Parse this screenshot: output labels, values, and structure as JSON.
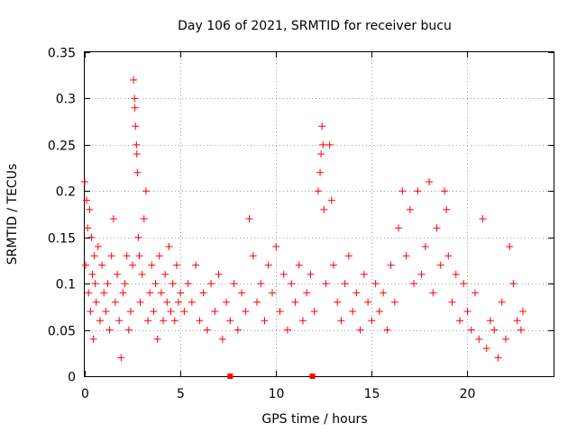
{
  "chart_data": {
    "type": "scatter",
    "title": "Day 106 of 2021, SRMTID for receiver bucu",
    "xlabel": "GPS time / hours",
    "ylabel": "SRMTID / TECUs",
    "xlim": [
      0,
      24.5
    ],
    "ylim": [
      0,
      0.35
    ],
    "x_ticks": [
      0,
      5,
      10,
      15,
      20
    ],
    "x_tick_labels": [
      "0",
      "5",
      "10",
      "15",
      "20"
    ],
    "y_ticks": [
      0,
      0.05,
      0.1,
      0.15,
      0.2,
      0.25,
      0.3,
      0.35
    ],
    "y_tick_labels": [
      "0",
      "0.05",
      "0.1",
      "0.15",
      "0.2",
      "0.25",
      "0.3",
      "0.35"
    ],
    "grid": true,
    "marker": "+",
    "color": "#ff0000",
    "series": [
      {
        "name": "SRMTID",
        "points": [
          [
            0.0,
            0.21
          ],
          [
            0.05,
            0.12
          ],
          [
            0.1,
            0.19
          ],
          [
            0.15,
            0.16
          ],
          [
            0.2,
            0.09
          ],
          [
            0.25,
            0.18
          ],
          [
            0.3,
            0.07
          ],
          [
            0.35,
            0.15
          ],
          [
            0.4,
            0.11
          ],
          [
            0.45,
            0.04
          ],
          [
            0.5,
            0.13
          ],
          [
            0.55,
            0.1
          ],
          [
            0.6,
            0.08
          ],
          [
            0.7,
            0.14
          ],
          [
            0.8,
            0.06
          ],
          [
            0.9,
            0.12
          ],
          [
            1.0,
            0.09
          ],
          [
            1.1,
            0.07
          ],
          [
            1.2,
            0.1
          ],
          [
            1.3,
            0.05
          ],
          [
            1.4,
            0.13
          ],
          [
            1.5,
            0.17
          ],
          [
            1.6,
            0.08
          ],
          [
            1.7,
            0.11
          ],
          [
            1.8,
            0.06
          ],
          [
            1.9,
            0.02
          ],
          [
            2.0,
            0.09
          ],
          [
            2.1,
            0.1
          ],
          [
            2.2,
            0.13
          ],
          [
            2.3,
            0.05
          ],
          [
            2.4,
            0.07
          ],
          [
            2.5,
            0.12
          ],
          [
            2.55,
            0.32
          ],
          [
            2.6,
            0.3
          ],
          [
            2.62,
            0.29
          ],
          [
            2.65,
            0.27
          ],
          [
            2.7,
            0.25
          ],
          [
            2.72,
            0.24
          ],
          [
            2.75,
            0.22
          ],
          [
            2.8,
            0.15
          ],
          [
            2.85,
            0.13
          ],
          [
            2.9,
            0.08
          ],
          [
            3.0,
            0.11
          ],
          [
            3.1,
            0.17
          ],
          [
            3.2,
            0.2
          ],
          [
            3.3,
            0.06
          ],
          [
            3.4,
            0.09
          ],
          [
            3.5,
            0.12
          ],
          [
            3.6,
            0.07
          ],
          [
            3.7,
            0.1
          ],
          [
            3.8,
            0.04
          ],
          [
            3.9,
            0.13
          ],
          [
            4.0,
            0.09
          ],
          [
            4.1,
            0.06
          ],
          [
            4.2,
            0.11
          ],
          [
            4.3,
            0.08
          ],
          [
            4.4,
            0.14
          ],
          [
            4.5,
            0.07
          ],
          [
            4.6,
            0.1
          ],
          [
            4.7,
            0.06
          ],
          [
            4.8,
            0.12
          ],
          [
            4.9,
            0.08
          ],
          [
            5.0,
            0.09
          ],
          [
            5.2,
            0.07
          ],
          [
            5.4,
            0.1
          ],
          [
            5.6,
            0.08
          ],
          [
            5.8,
            0.12
          ],
          [
            6.0,
            0.06
          ],
          [
            6.2,
            0.09
          ],
          [
            6.4,
            0.05
          ],
          [
            6.6,
            0.1
          ],
          [
            6.8,
            0.07
          ],
          [
            7.0,
            0.11
          ],
          [
            7.2,
            0.04
          ],
          [
            7.4,
            0.08
          ],
          [
            7.6,
            0.06
          ],
          [
            7.8,
            0.1
          ],
          [
            8.0,
            0.05
          ],
          [
            8.2,
            0.09
          ],
          [
            8.4,
            0.07
          ],
          [
            8.6,
            0.17
          ],
          [
            8.8,
            0.13
          ],
          [
            9.0,
            0.08
          ],
          [
            9.2,
            0.1
          ],
          [
            9.4,
            0.06
          ],
          [
            9.6,
            0.12
          ],
          [
            9.8,
            0.09
          ],
          [
            10.0,
            0.14
          ],
          [
            10.2,
            0.07
          ],
          [
            10.4,
            0.11
          ],
          [
            10.6,
            0.05
          ],
          [
            10.8,
            0.1
          ],
          [
            11.0,
            0.08
          ],
          [
            11.2,
            0.12
          ],
          [
            11.4,
            0.06
          ],
          [
            11.6,
            0.09
          ],
          [
            11.8,
            0.11
          ],
          [
            12.0,
            0.07
          ],
          [
            12.2,
            0.2
          ],
          [
            12.3,
            0.22
          ],
          [
            12.35,
            0.24
          ],
          [
            12.4,
            0.27
          ],
          [
            12.45,
            0.25
          ],
          [
            12.5,
            0.18
          ],
          [
            12.6,
            0.1
          ],
          [
            12.8,
            0.25
          ],
          [
            12.9,
            0.19
          ],
          [
            13.0,
            0.12
          ],
          [
            13.2,
            0.08
          ],
          [
            13.4,
            0.06
          ],
          [
            13.6,
            0.1
          ],
          [
            13.8,
            0.13
          ],
          [
            14.0,
            0.07
          ],
          [
            14.2,
            0.09
          ],
          [
            14.4,
            0.05
          ],
          [
            14.6,
            0.11
          ],
          [
            14.8,
            0.08
          ],
          [
            15.0,
            0.06
          ],
          [
            15.2,
            0.1
          ],
          [
            15.4,
            0.07
          ],
          [
            15.6,
            0.09
          ],
          [
            15.8,
            0.05
          ],
          [
            16.0,
            0.12
          ],
          [
            16.2,
            0.08
          ],
          [
            16.4,
            0.16
          ],
          [
            16.6,
            0.2
          ],
          [
            16.8,
            0.13
          ],
          [
            17.0,
            0.18
          ],
          [
            17.2,
            0.1
          ],
          [
            17.4,
            0.2
          ],
          [
            17.6,
            0.11
          ],
          [
            17.8,
            0.14
          ],
          [
            18.0,
            0.21
          ],
          [
            18.2,
            0.09
          ],
          [
            18.4,
            0.16
          ],
          [
            18.6,
            0.12
          ],
          [
            18.8,
            0.2
          ],
          [
            18.9,
            0.18
          ],
          [
            19.0,
            0.13
          ],
          [
            19.2,
            0.08
          ],
          [
            19.4,
            0.11
          ],
          [
            19.6,
            0.06
          ],
          [
            19.8,
            0.1
          ],
          [
            20.0,
            0.07
          ],
          [
            20.2,
            0.05
          ],
          [
            20.4,
            0.09
          ],
          [
            20.6,
            0.04
          ],
          [
            20.8,
            0.17
          ],
          [
            21.0,
            0.03
          ],
          [
            21.2,
            0.06
          ],
          [
            21.4,
            0.05
          ],
          [
            21.6,
            0.02
          ],
          [
            21.8,
            0.08
          ],
          [
            22.0,
            0.04
          ],
          [
            22.2,
            0.14
          ],
          [
            22.4,
            0.1
          ],
          [
            22.6,
            0.06
          ],
          [
            22.8,
            0.05
          ],
          [
            22.9,
            0.07
          ]
        ]
      }
    ],
    "axis_markers": [
      7.6,
      11.9
    ]
  }
}
